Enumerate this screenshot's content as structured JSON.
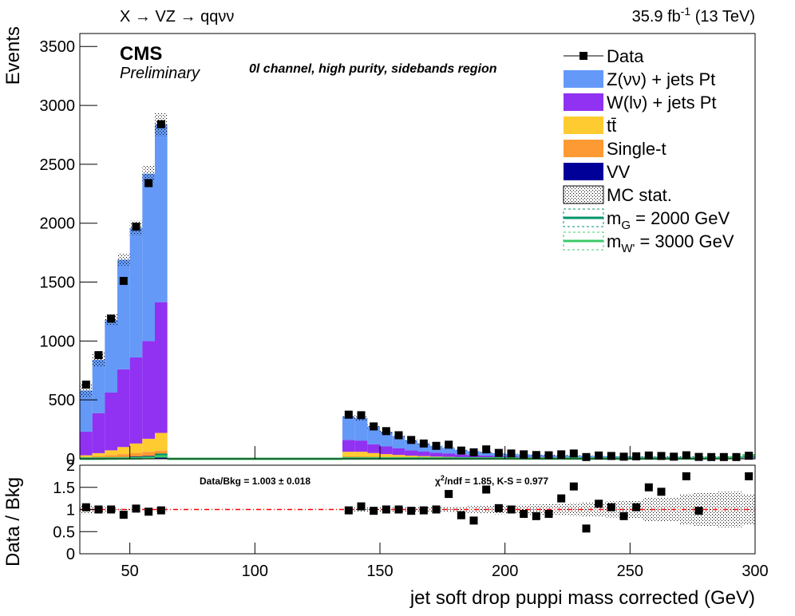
{
  "chart_data": [
    {
      "type": "stacked_histogram",
      "title": "X → VZ → qqνν",
      "lumi": "35.9 fb",
      "lumi_sup": "-1",
      "energy": " (13 TeV)",
      "cms": "CMS",
      "preliminary": "Preliminary",
      "annotation": "0l channel, high purity, sidebands region",
      "y_label": "Events",
      "bins": [
        30,
        35,
        40,
        45,
        50,
        55,
        60,
        65,
        70,
        75,
        80,
        85,
        90,
        95,
        100,
        105,
        110,
        115,
        120,
        125,
        130,
        135,
        140,
        145,
        150,
        155,
        160,
        165,
        170,
        175,
        180,
        185,
        190,
        195,
        200,
        205,
        210,
        215,
        220,
        225,
        230,
        235,
        240,
        245,
        250,
        255,
        260,
        265,
        270,
        275,
        280,
        285,
        290,
        295,
        300
      ],
      "xlim": [
        30,
        300
      ],
      "ylim": [
        0,
        3610
      ],
      "yticks": [
        0,
        500,
        1000,
        1500,
        2000,
        2500,
        3000,
        3500
      ],
      "data": {
        "name": "Data",
        "color": "#000000",
        "values": [
          630,
          880,
          1190,
          1510,
          1970,
          2340,
          2840,
          null,
          null,
          null,
          null,
          null,
          null,
          null,
          null,
          null,
          null,
          null,
          null,
          null,
          null,
          375,
          370,
          275,
          235,
          200,
          160,
          130,
          110,
          120,
          70,
          55,
          80,
          50,
          45,
          38,
          32,
          30,
          38,
          45,
          15,
          28,
          24,
          18,
          21,
          28,
          24,
          18,
          30,
          16,
          15,
          15,
          15,
          26
        ]
      },
      "series": [
        {
          "name": "Z(νν) + jets Pt",
          "color": "#6499f8",
          "values": [
            350,
            452,
            618,
            930,
            1100,
            1420,
            1510,
            0,
            0,
            0,
            0,
            0,
            0,
            0,
            0,
            0,
            0,
            0,
            0,
            0,
            0,
            200,
            190,
            150,
            125,
            105,
            85,
            70,
            58,
            48,
            40,
            33,
            28,
            24,
            21,
            19,
            17,
            15,
            14,
            13,
            12,
            11,
            10,
            10,
            9,
            9,
            8,
            8,
            7,
            7,
            7,
            6,
            6,
            6
          ]
        },
        {
          "name": "W(lν) + jets Pt",
          "color": "#9131f2",
          "values": [
            200,
            340,
            490,
            660,
            730,
            830,
            1110,
            0,
            0,
            0,
            0,
            0,
            0,
            0,
            0,
            0,
            0,
            0,
            0,
            0,
            0,
            100,
            95,
            75,
            65,
            55,
            45,
            38,
            32,
            27,
            22,
            19,
            16,
            14,
            12,
            11,
            10,
            9,
            8,
            8,
            7,
            7,
            6,
            6,
            6,
            5,
            5,
            5,
            5,
            4,
            4,
            4,
            4,
            4
          ]
        },
        {
          "name": "tt̄",
          "color": "#fecb31",
          "values": [
            15,
            25,
            40,
            60,
            80,
            110,
            150,
            0,
            0,
            0,
            0,
            0,
            0,
            0,
            0,
            0,
            0,
            0,
            0,
            0,
            0,
            40,
            40,
            32,
            26,
            21,
            17,
            14,
            12,
            10,
            8,
            7,
            6,
            5,
            5,
            4,
            4,
            4,
            3,
            3,
            3,
            3,
            3,
            2,
            2,
            2,
            2,
            2,
            2,
            2,
            2,
            2,
            2,
            2
          ]
        },
        {
          "name": "Single-t",
          "color": "#fe9a33",
          "values": [
            10,
            15,
            20,
            25,
            30,
            35,
            40,
            0,
            0,
            0,
            0,
            0,
            0,
            0,
            0,
            0,
            0,
            0,
            0,
            0,
            0,
            12,
            12,
            10,
            8,
            7,
            6,
            5,
            4,
            4,
            3,
            3,
            3,
            2,
            2,
            2,
            2,
            2,
            2,
            2,
            2,
            1,
            1,
            1,
            1,
            1,
            1,
            1,
            1,
            1,
            1,
            1,
            1,
            1
          ]
        },
        {
          "name": "VV",
          "color": "#000099",
          "values": [
            5,
            8,
            12,
            15,
            20,
            25,
            30,
            0,
            0,
            0,
            0,
            0,
            0,
            0,
            0,
            0,
            0,
            0,
            0,
            0,
            0,
            8,
            8,
            7,
            6,
            5,
            4,
            4,
            3,
            3,
            3,
            2,
            2,
            2,
            2,
            2,
            2,
            2,
            2,
            2,
            2,
            2,
            2,
            2,
            2,
            2,
            2,
            2,
            2,
            2,
            2,
            2,
            2,
            2
          ]
        }
      ],
      "mc_stat": {
        "name": "MC stat.",
        "values": [
          60,
          60,
          50,
          50,
          60,
          70,
          100,
          0,
          0,
          0,
          0,
          0,
          0,
          0,
          0,
          0,
          0,
          0,
          0,
          0,
          0,
          20,
          20,
          15,
          12,
          10,
          8,
          7,
          6,
          6,
          5,
          5,
          5,
          5,
          4,
          4,
          4,
          4,
          4,
          4,
          4,
          4,
          4,
          4,
          4,
          5,
          5,
          5,
          6,
          6,
          6,
          6,
          6,
          5
        ]
      },
      "signals": [
        {
          "name": "m",
          "name_sub": "G",
          "name_rest": " = 2000 GeV",
          "color": "#00936b",
          "values": [
            2,
            2,
            3,
            4,
            6,
            10,
            35,
            0,
            0,
            0,
            0,
            0,
            0,
            0,
            0,
            0,
            0,
            0,
            0,
            0,
            0,
            4,
            4,
            4,
            4,
            4,
            4,
            4,
            4,
            4,
            4,
            4,
            4,
            4,
            4,
            4,
            4,
            4,
            4,
            4,
            4,
            4,
            4,
            4,
            4,
            4,
            4,
            4,
            4,
            5,
            6,
            8,
            12,
            25
          ]
        },
        {
          "name": "m",
          "name_sub": "W'",
          "name_rest": " = 3000 GeV",
          "color": "#3ccb6a",
          "values": [
            1,
            1,
            2,
            3,
            4,
            6,
            20,
            0,
            0,
            0,
            0,
            0,
            0,
            0,
            0,
            0,
            0,
            0,
            0,
            0,
            0,
            2,
            2,
            2,
            2,
            2,
            2,
            2,
            2,
            2,
            2,
            2,
            2,
            2,
            2,
            2,
            2,
            2,
            2,
            2,
            2,
            2,
            2,
            2,
            2,
            2,
            2,
            2,
            2,
            3,
            4,
            6,
            10,
            30
          ]
        }
      ]
    },
    {
      "type": "ratio",
      "y_label": "Data / Bkg",
      "x_label": "jet soft drop puppi mass corrected (GeV)",
      "summary": "Data/Bkg = 1.003 ± 0.018",
      "chi": "χ",
      "chi_sup": "2",
      "chi_rest": "/ndf = 1.85,   K-S = 0.977",
      "xlim": [
        30,
        300
      ],
      "xticks": [
        50,
        100,
        150,
        200,
        250,
        300
      ],
      "ylim": [
        0,
        2
      ],
      "yticks": [
        0,
        0.5,
        1,
        1.5,
        2
      ],
      "reference_line": 1,
      "reference_color": "#ff0000",
      "values": [
        1.05,
        1.0,
        1.0,
        0.88,
        1.02,
        0.95,
        0.98,
        null,
        null,
        null,
        null,
        null,
        null,
        null,
        null,
        null,
        null,
        null,
        null,
        null,
        null,
        0.98,
        1.07,
        0.97,
        1.0,
        1.0,
        0.97,
        0.98,
        1.0,
        1.35,
        0.87,
        0.75,
        1.45,
        1.03,
        1.0,
        0.9,
        0.85,
        0.9,
        1.25,
        1.52,
        0.57,
        1.13,
        1.05,
        0.85,
        1.05,
        1.5,
        1.4,
        null,
        1.75,
        0.97,
        null,
        null,
        null,
        1.75
      ]
    }
  ]
}
